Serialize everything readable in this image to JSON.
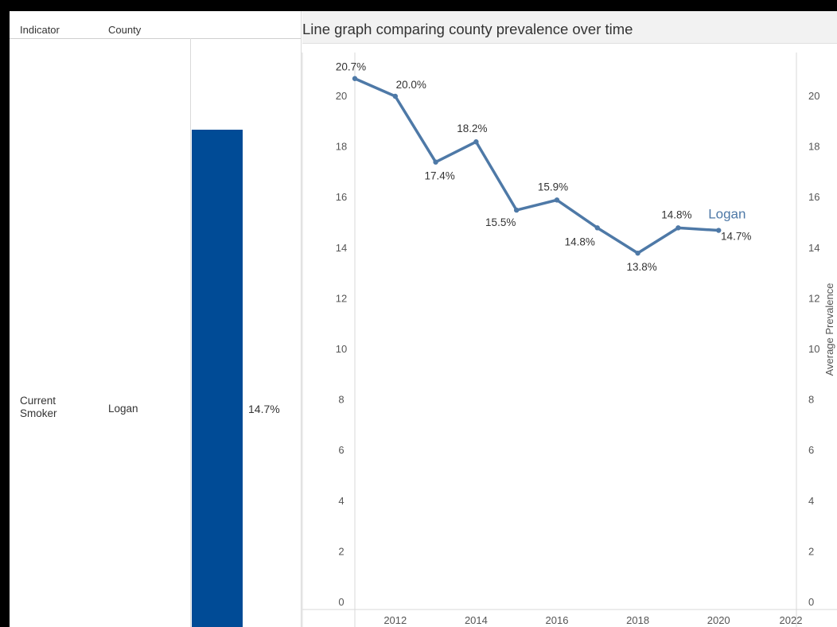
{
  "table": {
    "headers": {
      "indicator": "Indicator",
      "county": "County"
    },
    "row": {
      "indicator": "Current Smoker",
      "county": "Logan",
      "value_label": "14.7%",
      "value": 14.7
    },
    "bar_color": "#004b96"
  },
  "chart_title": "Line graph comparing county prevalence over time",
  "chart_data": {
    "type": "line",
    "title": "Line graph comparing county prevalence over time",
    "xlabel": "",
    "ylabel": "Average Prevalence",
    "xlim": [
      2011,
      2022
    ],
    "ylim": [
      0,
      21.5
    ],
    "x_ticks": [
      "2012",
      "2014",
      "2016",
      "2018",
      "2020",
      "2022"
    ],
    "y_ticks": [
      "0",
      "2",
      "4",
      "6",
      "8",
      "10",
      "12",
      "14",
      "16",
      "18",
      "20"
    ],
    "grid": false,
    "series": [
      {
        "name": "Logan",
        "color": "#4e79a7",
        "x": [
          2011,
          2012,
          2013,
          2014,
          2015,
          2016,
          2017,
          2018,
          2019,
          2020
        ],
        "y": [
          20.7,
          20.0,
          17.4,
          18.2,
          15.5,
          15.9,
          14.8,
          13.8,
          14.8,
          14.7
        ],
        "labels": [
          "20.7%",
          "20.0%",
          "17.4%",
          "18.2%",
          "15.5%",
          "15.9%",
          "14.8%",
          "13.8%",
          "14.8%",
          "14.7%"
        ]
      }
    ]
  }
}
